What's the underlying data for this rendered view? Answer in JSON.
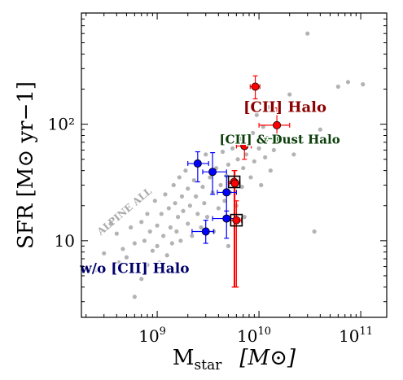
{
  "chart_data": {
    "type": "scatter",
    "xscale": "log",
    "yscale": "log",
    "xlim": [
      180000000,
      180000000000
    ],
    "ylim": [
      2.2,
      900
    ],
    "xlabel": "M",
    "xlabel_sub": "star",
    "xlabel_unit": "[M⊙]",
    "ylabel": "SFR [M⊙ yr−1]",
    "x_ticks": [
      {
        "value": 1000000000,
        "base": "10",
        "exp": "9"
      },
      {
        "value": 10000000000,
        "base": "10",
        "exp": "10"
      },
      {
        "value": 100000000000,
        "base": "10",
        "exp": "11"
      }
    ],
    "y_ticks": [
      {
        "value": 10,
        "label": "10"
      },
      {
        "value": 100,
        "label": "10²"
      }
    ],
    "grid": false,
    "annotations": [
      {
        "text": "[CII] Halo",
        "color": "#8b0000",
        "x": 18000000000,
        "y": 128
      },
      {
        "text": "[CII] & Dust Halo",
        "color": "#0b3d0b",
        "x": 16000000000,
        "y": 68
      },
      {
        "text": "w/o [CII] Halo",
        "color": "#00006b",
        "x": 600000000,
        "y": 5.3
      },
      {
        "text": "ALPINE ALL",
        "color": "#aaaaaa",
        "x": 500000000,
        "y": 17,
        "rotation": -40
      }
    ],
    "colors": {
      "background_points": "#a6a6a6",
      "cii_halo": "#ff0000",
      "cii_dust_halo": "#006400",
      "no_halo": "#0000ff"
    },
    "background_points": [
      [
        250000000,
        5.6
      ],
      [
        300000000,
        7.8
      ],
      [
        350000000,
        14
      ],
      [
        400000000,
        11.5
      ],
      [
        420000000,
        6.5
      ],
      [
        460000000,
        8.5
      ],
      [
        500000000,
        7.2
      ],
      [
        550000000,
        13
      ],
      [
        600000000,
        3.3
      ],
      [
        600000000,
        9.5
      ],
      [
        650000000,
        5.8
      ],
      [
        700000000,
        14.5
      ],
      [
        700000000,
        4.7
      ],
      [
        750000000,
        10
      ],
      [
        800000000,
        17
      ],
      [
        800000000,
        6.2
      ],
      [
        850000000,
        12
      ],
      [
        900000000,
        8.2
      ],
      [
        950000000,
        22
      ],
      [
        1000000000,
        9
      ],
      [
        1000000000,
        13.5
      ],
      [
        1050000000,
        6.5
      ],
      [
        1100000000,
        17
      ],
      [
        1150000000,
        11
      ],
      [
        1200000000,
        25
      ],
      [
        1250000000,
        7.5
      ],
      [
        1300000000,
        19
      ],
      [
        1350000000,
        13
      ],
      [
        1400000000,
        9.5
      ],
      [
        1450000000,
        30
      ],
      [
        1500000000,
        21
      ],
      [
        1550000000,
        12
      ],
      [
        1600000000,
        16
      ],
      [
        1650000000,
        35
      ],
      [
        1700000000,
        10
      ],
      [
        1750000000,
        24
      ],
      [
        1800000000,
        18
      ],
      [
        1900000000,
        40
      ],
      [
        2000000000,
        14
      ],
      [
        2000000000,
        28
      ],
      [
        2100000000,
        20
      ],
      [
        2200000000,
        11
      ],
      [
        2300000000,
        33
      ],
      [
        2400000000,
        24
      ],
      [
        2500000000,
        17
      ],
      [
        2600000000,
        45
      ],
      [
        2700000000,
        13
      ],
      [
        2800000000,
        29
      ],
      [
        2900000000,
        21
      ],
      [
        3000000000,
        55
      ],
      [
        3100000000,
        16
      ],
      [
        3300000000,
        35
      ],
      [
        3500000000,
        26
      ],
      [
        3600000000,
        12
      ],
      [
        3800000000,
        42
      ],
      [
        4000000000,
        19
      ],
      [
        4200000000,
        30
      ],
      [
        4400000000,
        58
      ],
      [
        4600000000,
        22
      ],
      [
        4800000000,
        36
      ],
      [
        5000000000,
        9
      ],
      [
        5000000000,
        45
      ],
      [
        5200000000,
        26
      ],
      [
        5500000000,
        62
      ],
      [
        5800000000,
        33
      ],
      [
        6000000000,
        20
      ],
      [
        6200000000,
        50
      ],
      [
        6500000000,
        75
      ],
      [
        6800000000,
        29
      ],
      [
        7000000000,
        42
      ],
      [
        7200000000,
        16
      ],
      [
        7500000000,
        55
      ],
      [
        8000000000,
        70
      ],
      [
        8300000000,
        35
      ],
      [
        8700000000,
        84
      ],
      [
        9000000000,
        48
      ],
      [
        9500000000,
        120
      ],
      [
        10000000000,
        62
      ],
      [
        10500000000,
        30
      ],
      [
        11000000000,
        95
      ],
      [
        11500000000,
        52
      ],
      [
        12000000000,
        76
      ],
      [
        12500000000,
        140
      ],
      [
        13000000000,
        40
      ],
      [
        14000000000,
        60
      ],
      [
        15000000000,
        100
      ],
      [
        17000000000,
        72
      ],
      [
        20000000000,
        180
      ],
      [
        22000000000,
        55
      ],
      [
        25000000000,
        130
      ],
      [
        30000000000,
        600
      ],
      [
        35000000000,
        12
      ],
      [
        40000000000,
        90
      ],
      [
        60000000000,
        210
      ],
      [
        75000000000,
        230
      ],
      [
        105000000000,
        220
      ]
    ],
    "series": [
      {
        "name": "[CII] Halo",
        "color": "#ff0000",
        "points": [
          {
            "x": 9200000000,
            "y": 210,
            "xerr": [
              1000000000,
              1000000000
            ],
            "yerr": [
              45,
              50
            ]
          },
          {
            "x": 15000000000,
            "y": 98,
            "xerr": [
              5000000000,
              5000000000
            ],
            "yerr": [
              28,
              40
            ]
          },
          {
            "x": 7200000000,
            "y": 65,
            "xerr": [
              1200000000,
              1200000000
            ],
            "yerr": [
              15,
              15
            ]
          },
          {
            "x": 5700000000,
            "y": 32,
            "xerr": [
              700000000,
              700000000
            ],
            "yerr": [
              28,
              8
            ],
            "boxed": true
          },
          {
            "x": 5800000000,
            "y": 31,
            "xerr": [
              700000000,
              700000000
            ],
            "yerr": [
              27,
              9
            ]
          },
          {
            "x": 6000000000,
            "y": 15,
            "xerr": [
              700000000,
              700000000
            ],
            "yerr": [
              11,
              7
            ],
            "boxed": true
          }
        ]
      },
      {
        "name": "[CII] & Dust Halo",
        "color": "#006400",
        "points": [
          {
            "x": 15500000000,
            "y": 75,
            "xerr": [
              3500000000,
              3500000000
            ],
            "yerr": [
              4,
              4
            ]
          }
        ]
      },
      {
        "name": "w/o [CII] Halo",
        "color": "#0000ff",
        "points": [
          {
            "x": 2500000000,
            "y": 46,
            "xerr": [
              500000000,
              700000000
            ],
            "yerr": [
              14,
              12
            ]
          },
          {
            "x": 3500000000,
            "y": 39,
            "xerr": [
              700000000,
              1300000000
            ],
            "yerr": [
              14,
              18
            ]
          },
          {
            "x": 4800000000,
            "y": 26,
            "xerr": [
              900000000,
              1200000000
            ],
            "yerr": [
              10,
              10
            ]
          },
          {
            "x": 4800000000,
            "y": 15.5,
            "xerr": [
              1300000000,
              1300000000
            ],
            "yerr": [
              5,
              2.5
            ]
          },
          {
            "x": 3000000000,
            "y": 12,
            "xerr": [
              800000000,
              600000000
            ],
            "yerr": [
              2.5,
              3
            ]
          }
        ]
      }
    ]
  }
}
